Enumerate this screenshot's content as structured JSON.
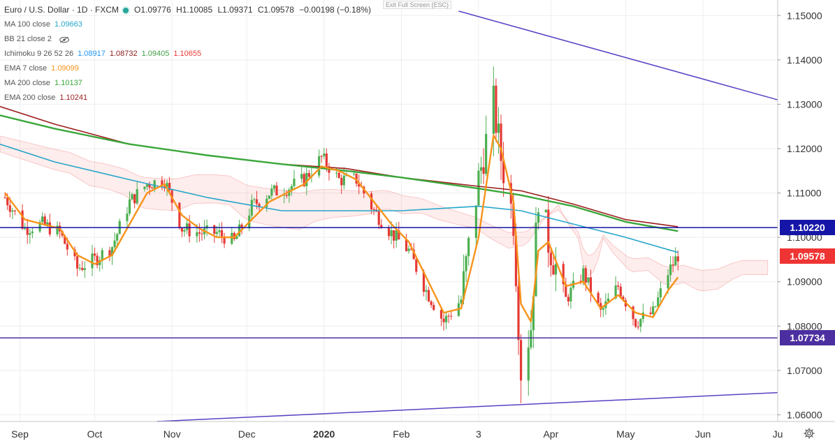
{
  "header": {
    "symbol": "Euro / U.S. Dollar · 1D · FXCM",
    "open": "O1.09776",
    "high": "H1.10085",
    "low": "L1.09371",
    "close": "C1.09578",
    "change": "−0.00198 (−0.18%)",
    "fullscreen_hint": "Exit Full Screen (ESC)"
  },
  "indicators": [
    {
      "name": "MA 100 close",
      "values": [
        {
          "text": "1.09663",
          "color": "#26a6c9"
        }
      ]
    },
    {
      "name": "BB 21 close 2",
      "values": [],
      "hidden_icon": "eye-slash-icon"
    },
    {
      "name": "Ichimoku 9 26 52 26",
      "values": [
        {
          "text": "1.08917",
          "color": "#2196f3"
        },
        {
          "text": "1.08732",
          "color": "#8b1a1a"
        },
        {
          "text": "1.09405",
          "color": "#43a047"
        },
        {
          "text": "1.10655",
          "color": "#e53935"
        }
      ]
    },
    {
      "name": "EMA 7 close",
      "values": [
        {
          "text": "1.09099",
          "color": "#f7931a"
        }
      ]
    },
    {
      "name": "MA 200 close",
      "values": [
        {
          "text": "1.10137",
          "color": "#3aa63a"
        }
      ]
    },
    {
      "name": "EMA 200 close",
      "values": [
        {
          "text": "1.10241",
          "color": "#9c1c1c"
        }
      ]
    }
  ],
  "price_tags": [
    {
      "label": "1.10220",
      "value": 1.1022,
      "color": "#1515a8"
    },
    {
      "label": "1.09578",
      "value": 1.09578,
      "color": "#ef3434"
    },
    {
      "label": "1.07734",
      "value": 1.07734,
      "color": "#4b2fa0"
    }
  ],
  "colors": {
    "bull": "#3a8f2e",
    "bear": "#e02424",
    "up_candle": "#4caf50",
    "down_candle": "#e53935"
  },
  "chart_data": {
    "type": "candlestick",
    "title": "Euro / U.S. Dollar · 1D · FXCM",
    "y_ticks": [
      "1.15000",
      "1.14000",
      "1.13000",
      "1.12000",
      "1.11000",
      "1.10000",
      "1.09000",
      "1.08000",
      "1.07000",
      "1.06000"
    ],
    "y_tick_values": [
      1.15,
      1.14,
      1.13,
      1.12,
      1.11,
      1.1,
      1.09,
      1.08,
      1.07,
      1.06
    ],
    "ylim": [
      1.0585,
      1.1535
    ],
    "x_ticks": [
      {
        "label": "Sep",
        "date": "2019-09-01"
      },
      {
        "label": "Oct",
        "date": "2019-10-01"
      },
      {
        "label": "Nov",
        "date": "2019-11-01"
      },
      {
        "label": "Dec",
        "date": "2019-12-01"
      },
      {
        "label": "2020",
        "date": "2020-01-01"
      },
      {
        "label": "Feb",
        "date": "2020-02-01"
      },
      {
        "label": "3",
        "date": "2020-03-03"
      },
      {
        "label": "Apr",
        "date": "2020-04-01"
      },
      {
        "label": "May",
        "date": "2020-05-01"
      },
      {
        "label": "Jun",
        "date": "2020-06-01"
      },
      {
        "label": "Ju",
        "date": "2020-07-01"
      }
    ],
    "xlim": [
      "2019-08-24",
      "2020-07-01"
    ],
    "grid": true,
    "closes": {
      "dates": [
        "2019-08-26",
        "2019-09-03",
        "2019-09-10",
        "2019-09-17",
        "2019-09-24",
        "2019-10-01",
        "2019-10-08",
        "2019-10-15",
        "2019-10-22",
        "2019-10-29",
        "2019-11-05",
        "2019-11-12",
        "2019-11-19",
        "2019-11-26",
        "2019-12-03",
        "2019-12-10",
        "2019-12-17",
        "2019-12-24",
        "2019-12-31",
        "2020-01-07",
        "2020-01-14",
        "2020-01-21",
        "2020-01-28",
        "2020-02-04",
        "2020-02-11",
        "2020-02-18",
        "2020-02-25",
        "2020-03-03",
        "2020-03-09",
        "2020-03-12",
        "2020-03-17",
        "2020-03-20",
        "2020-03-24",
        "2020-03-27",
        "2020-03-31",
        "2020-04-07",
        "2020-04-14",
        "2020-04-21",
        "2020-04-28",
        "2020-05-05",
        "2020-05-12",
        "2020-05-18",
        "2020-05-22"
      ],
      "values": [
        1.109,
        1.102,
        1.103,
        1.101,
        1.093,
        1.095,
        1.098,
        1.108,
        1.112,
        1.113,
        1.102,
        1.101,
        1.101,
        1.099,
        1.107,
        1.11,
        1.111,
        1.113,
        1.118,
        1.113,
        1.113,
        1.106,
        1.101,
        1.097,
        1.088,
        1.081,
        1.086,
        1.113,
        1.13,
        1.118,
        1.104,
        1.07,
        1.08,
        1.11,
        1.099,
        1.086,
        1.092,
        1.083,
        1.089,
        1.081,
        1.083,
        1.092,
        1.096
      ]
    },
    "ema7": {
      "dates": [
        "2019-08-26",
        "2019-09-03",
        "2019-09-10",
        "2019-09-17",
        "2019-09-24",
        "2019-10-01",
        "2019-10-08",
        "2019-10-15",
        "2019-10-22",
        "2019-10-29",
        "2019-11-05",
        "2019-11-12",
        "2019-11-19",
        "2019-11-26",
        "2019-12-03",
        "2019-12-10",
        "2019-12-17",
        "2019-12-24",
        "2019-12-31",
        "2020-01-07",
        "2020-01-14",
        "2020-01-21",
        "2020-01-28",
        "2020-02-04",
        "2020-02-11",
        "2020-02-18",
        "2020-02-25",
        "2020-03-03",
        "2020-03-09",
        "2020-03-12",
        "2020-03-17",
        "2020-03-20",
        "2020-03-24",
        "2020-03-27",
        "2020-03-31",
        "2020-04-07",
        "2020-04-14",
        "2020-04-21",
        "2020-04-28",
        "2020-05-05",
        "2020-05-12",
        "2020-05-18",
        "2020-05-22"
      ],
      "values": [
        1.11,
        1.104,
        1.103,
        1.102,
        1.096,
        1.094,
        1.096,
        1.103,
        1.11,
        1.112,
        1.105,
        1.102,
        1.1,
        1.1,
        1.104,
        1.108,
        1.11,
        1.112,
        1.116,
        1.115,
        1.113,
        1.108,
        1.103,
        1.099,
        1.091,
        1.083,
        1.084,
        1.1,
        1.123,
        1.12,
        1.108,
        1.085,
        1.081,
        1.097,
        1.099,
        1.089,
        1.09,
        1.084,
        1.087,
        1.083,
        1.082,
        1.088,
        1.091
      ]
    },
    "ma100": {
      "dates": [
        "2019-08-24",
        "2019-09-15",
        "2019-10-15",
        "2019-11-15",
        "2019-12-15",
        "2020-01-10",
        "2020-02-01",
        "2020-03-03",
        "2020-03-20",
        "2020-04-10",
        "2020-05-01",
        "2020-05-22"
      ],
      "values": [
        1.121,
        1.117,
        1.113,
        1.109,
        1.106,
        1.106,
        1.106,
        1.107,
        1.106,
        1.103,
        1.1,
        1.0966
      ]
    },
    "ma200": {
      "dates": [
        "2019-08-24",
        "2019-09-15",
        "2019-10-15",
        "2019-11-15",
        "2019-12-15",
        "2020-01-10",
        "2020-02-01",
        "2020-03-03",
        "2020-03-20",
        "2020-04-10",
        "2020-05-01",
        "2020-05-22"
      ],
      "values": [
        1.1275,
        1.1245,
        1.121,
        1.1185,
        1.1165,
        1.115,
        1.1135,
        1.111,
        1.1095,
        1.107,
        1.1035,
        1.1014
      ]
    },
    "ema200": {
      "dates": [
        "2019-08-24",
        "2019-09-15",
        "2019-10-15",
        "2019-11-15",
        "2019-12-15",
        "2020-01-10",
        "2020-02-01",
        "2020-03-03",
        "2020-03-20",
        "2020-04-10",
        "2020-05-01",
        "2020-05-22"
      ],
      "values": [
        1.1295,
        1.1255,
        1.121,
        1.1185,
        1.1165,
        1.1155,
        1.1135,
        1.1115,
        1.1105,
        1.1075,
        1.104,
        1.1024
      ]
    },
    "trendlines": [
      {
        "name": "upper-trendline",
        "from": [
          "2020-02-24",
          1.151
        ],
        "to": [
          "2020-07-01",
          1.131
        ],
        "color": "#5b3fc4"
      },
      {
        "name": "lower-trendline",
        "from": [
          "2019-10-26",
          1.0585
        ],
        "to": [
          "2020-07-01",
          1.065
        ],
        "color": "#5b3fc4"
      }
    ],
    "horizontal_lines": [
      {
        "name": "resistance-line",
        "value": 1.1022,
        "color": "#1515a8"
      },
      {
        "name": "support-line",
        "value": 1.07734,
        "color": "#4b2fa0"
      }
    ]
  }
}
